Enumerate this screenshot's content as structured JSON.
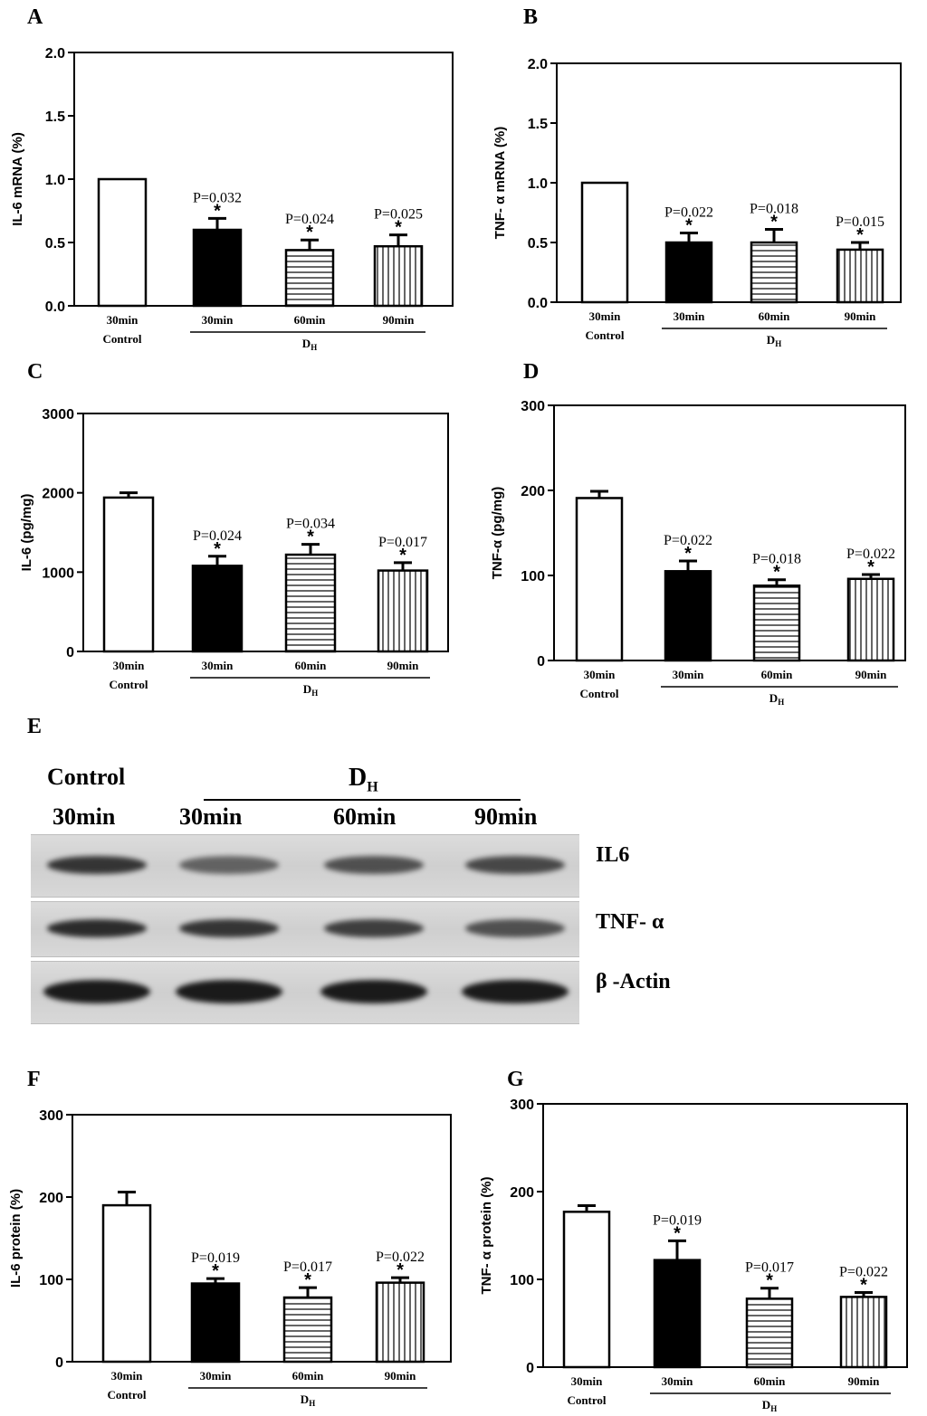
{
  "panel_letters": {
    "A": "A",
    "B": "B",
    "C": "C",
    "D": "D",
    "E": "E",
    "F": "F",
    "G": "G"
  },
  "group": {
    "control_label": "Control",
    "dh_label": "D",
    "dh_sub": "H"
  },
  "chart_data": [
    {
      "id": "A",
      "type": "bar",
      "ylabel": "IL-6 mRNA (%)",
      "ylim": [
        0,
        2.0
      ],
      "yticks": [
        "0.0",
        "0.5",
        "1.0",
        "1.5",
        "2.0"
      ],
      "categories": [
        "30min",
        "30min",
        "60min",
        "90min"
      ],
      "values": [
        1.0,
        0.6,
        0.44,
        0.47
      ],
      "errors": [
        0,
        0.09,
        0.08,
        0.09
      ],
      "annotations": [
        "",
        "P=0.032",
        "P=0.024",
        "P=0.025"
      ],
      "stars": [
        "",
        "*",
        "*",
        "*"
      ],
      "fills": [
        "white",
        "black",
        "hstripe",
        "vstripe"
      ]
    },
    {
      "id": "B",
      "type": "bar",
      "ylabel": "TNF- α mRNA (%)",
      "ylim": [
        0,
        2.0
      ],
      "yticks": [
        "0.0",
        "0.5",
        "1.0",
        "1.5",
        "2.0"
      ],
      "categories": [
        "30min",
        "30min",
        "60min",
        "90min"
      ],
      "values": [
        1.0,
        0.5,
        0.5,
        0.44
      ],
      "errors": [
        0,
        0.08,
        0.11,
        0.06
      ],
      "annotations": [
        "",
        "P=0.022",
        "P=0.018",
        "P=0.015"
      ],
      "stars": [
        "",
        "*",
        "*",
        "*"
      ],
      "fills": [
        "white",
        "black",
        "hstripe",
        "vstripe"
      ]
    },
    {
      "id": "C",
      "type": "bar",
      "ylabel": "IL-6 (pg/mg)",
      "ylim": [
        0,
        3000
      ],
      "yticks": [
        "0",
        "1000",
        "2000",
        "3000"
      ],
      "categories": [
        "30min",
        "30min",
        "60min",
        "90min"
      ],
      "values": [
        1940,
        1080,
        1220,
        1020
      ],
      "errors": [
        60,
        120,
        130,
        100
      ],
      "annotations": [
        "",
        "P=0.024",
        "P=0.034",
        "P=0.017"
      ],
      "stars": [
        "",
        "*",
        "*",
        "*"
      ],
      "fills": [
        "white",
        "black",
        "hstripe",
        "vstripe"
      ]
    },
    {
      "id": "D",
      "type": "bar",
      "ylabel": "TNF-α (pg/mg)",
      "ylim": [
        0,
        300
      ],
      "yticks": [
        "0",
        "100",
        "200",
        "300"
      ],
      "categories": [
        "30min",
        "30min",
        "60min",
        "90min"
      ],
      "values": [
        191,
        105,
        88,
        96
      ],
      "errors": [
        8,
        12,
        7,
        5
      ],
      "annotations": [
        "",
        "P=0.022",
        "P=0.018",
        "P=0.022"
      ],
      "stars": [
        "",
        "*",
        "*",
        "*"
      ],
      "fills": [
        "white",
        "black",
        "hstripe",
        "vstripe"
      ]
    },
    {
      "id": "F",
      "type": "bar",
      "ylabel": "IL-6 protein (%)",
      "ylim": [
        0,
        300
      ],
      "yticks": [
        "0",
        "100",
        "200",
        "300"
      ],
      "categories": [
        "30min",
        "30min",
        "60min",
        "90min"
      ],
      "values": [
        190,
        95,
        78,
        96
      ],
      "errors": [
        16,
        6,
        12,
        6
      ],
      "annotations": [
        "",
        "P=0.019",
        "P=0.017",
        "P=0.022"
      ],
      "stars": [
        "",
        "*",
        "*",
        "*"
      ],
      "fills": [
        "white",
        "black",
        "hstripe",
        "vstripe"
      ]
    },
    {
      "id": "G",
      "type": "bar",
      "ylabel": "TNF- α  protein (%)",
      "ylim": [
        0,
        300
      ],
      "yticks": [
        "0",
        "100",
        "200",
        "300"
      ],
      "categories": [
        "30min",
        "30min",
        "60min",
        "90min"
      ],
      "values": [
        177,
        122,
        78,
        80
      ],
      "errors": [
        7,
        22,
        12,
        5
      ],
      "annotations": [
        "",
        "P=0.019",
        "P=0.017",
        "P=0.022"
      ],
      "stars": [
        "",
        "*",
        "*",
        "*"
      ],
      "fills": [
        "white",
        "black",
        "hstripe",
        "vstripe"
      ]
    }
  ],
  "blot": {
    "control": "Control",
    "dh": "D",
    "dh_sub": "H",
    "times": [
      "30min",
      "30min",
      "60min",
      "90min"
    ],
    "rows": [
      {
        "label": "IL6",
        "intensity": [
          0.85,
          0.6,
          0.7,
          0.75
        ]
      },
      {
        "label": "TNF- α",
        "intensity": [
          0.9,
          0.85,
          0.8,
          0.7
        ]
      },
      {
        "label": "β -Actin",
        "intensity": [
          1.0,
          1.0,
          1.0,
          1.0
        ]
      }
    ]
  }
}
